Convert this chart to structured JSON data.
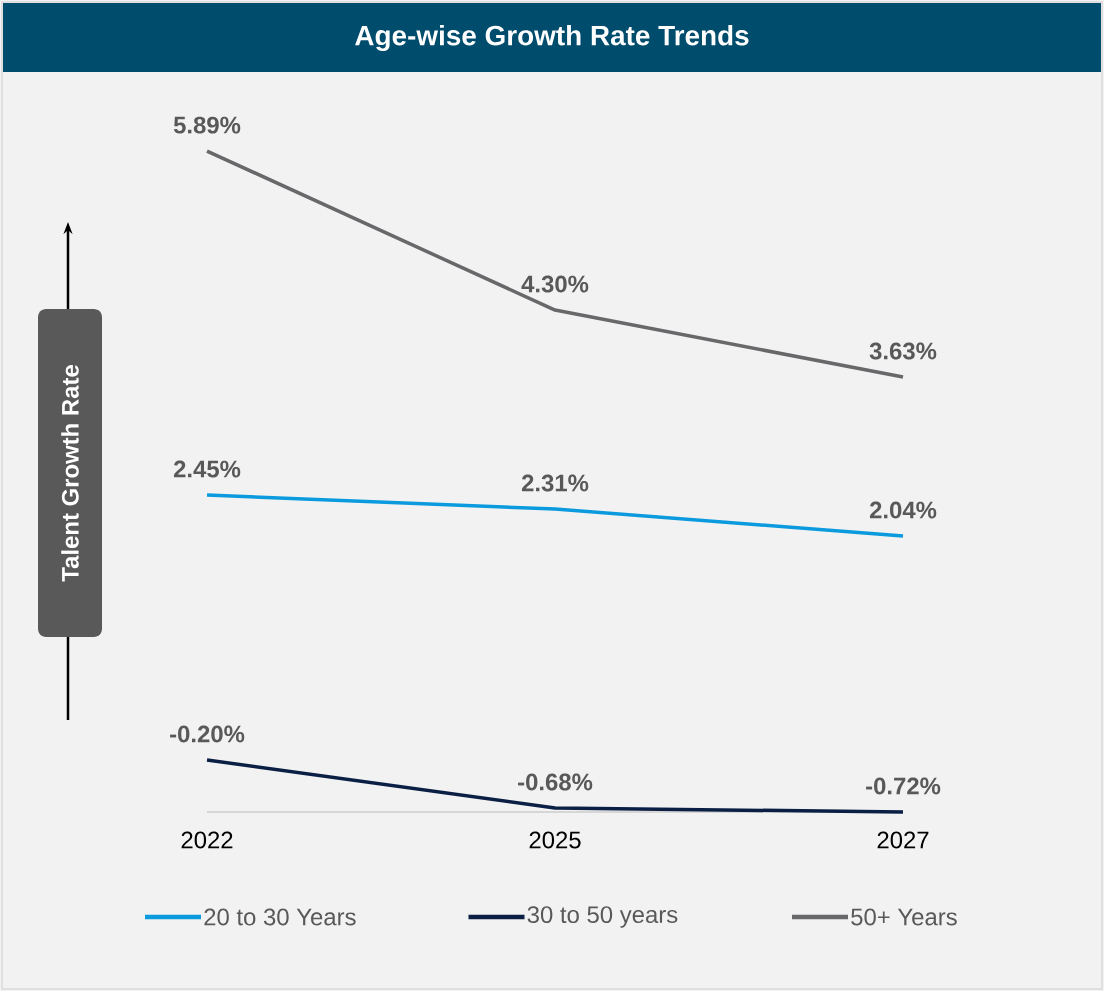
{
  "chart_data": {
    "type": "line",
    "title": "Age-wise Growth Rate Trends",
    "annotations": [
      "Talent Growth Rate"
    ],
    "categories": [
      "2022",
      "2025",
      "2027"
    ],
    "series": [
      {
        "name": "20 to 30 Years",
        "color": "#0b9ade",
        "values": [
          2.45,
          2.31,
          2.04
        ],
        "value_labels": [
          "2.45%",
          "2.31%",
          "2.04%"
        ]
      },
      {
        "name": "30 to 50 years",
        "color": "#0b1f45",
        "values": [
          -0.2,
          -0.68,
          -0.72
        ],
        "value_labels": [
          "-0.20%",
          "-0.68%",
          "-0.72%"
        ]
      },
      {
        "name": "50+ Years",
        "color": "#68686b",
        "values": [
          5.89,
          4.3,
          3.63
        ],
        "value_labels": [
          "5.89%",
          "4.30%",
          "3.63%"
        ]
      }
    ],
    "legend": "bottom"
  }
}
